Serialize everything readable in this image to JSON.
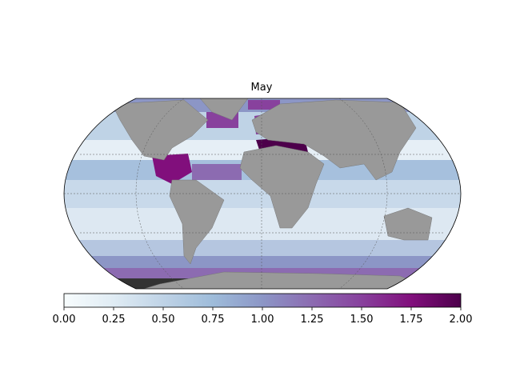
{
  "title": "May",
  "colorbar": {
    "lim": [
      0,
      2
    ],
    "colors": [
      "#f7fcfd",
      "#e0ecf4",
      "#bfd3e6",
      "#9ebcda",
      "#8c96c6",
      "#8c6bb1",
      "#88419d",
      "#810f7c",
      "#4d004b"
    ],
    "ticks": [
      {
        "value": 0,
        "label": "0.00"
      },
      {
        "value": 0.25,
        "label": "0.25"
      },
      {
        "value": 0.5,
        "label": "0.50"
      },
      {
        "value": 0.75,
        "label": "0.75"
      },
      {
        "value": 1,
        "label": "1.00"
      },
      {
        "value": 1.25,
        "label": "1.25"
      },
      {
        "value": 1.5,
        "label": "1.50"
      },
      {
        "value": 1.75,
        "label": "1.75"
      },
      {
        "value": 2,
        "label": "2.00"
      }
    ]
  }
}
